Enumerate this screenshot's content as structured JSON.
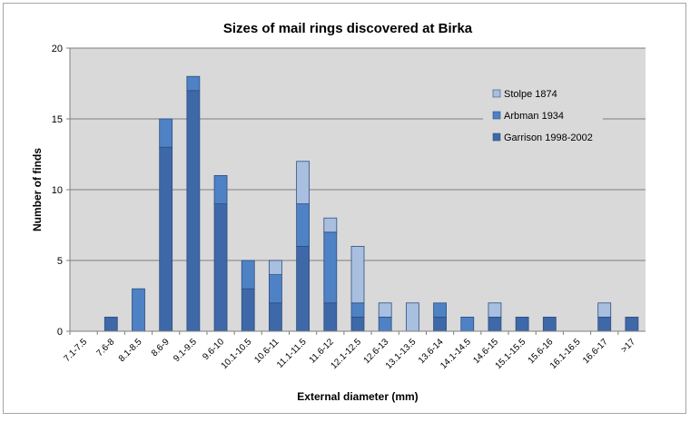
{
  "chart_data": {
    "type": "bar",
    "stacked": true,
    "title": "Sizes of mail rings discovered at Birka",
    "xlabel": "External diameter (mm)",
    "ylabel": "Number of finds",
    "ylim": [
      0,
      20
    ],
    "yticks": [
      0,
      5,
      10,
      15,
      20
    ],
    "grid": true,
    "legend_position": "top-right",
    "categories": [
      "7.1-7.5",
      "7.6-8",
      "8.1-8.5",
      "8.6-9",
      "9.1-9.5",
      "9.6-10",
      "10.1-10.5",
      "10.6-11",
      "11.1-11.5",
      "11.6-12",
      "12.1-12.5",
      "12.6-13",
      "13.1-13.5",
      "13.6-14",
      "14.1-14.5",
      "14.6-15",
      "15.1-15.5",
      "15.6-16",
      "16.1-16.5",
      "16.6-17",
      ">17"
    ],
    "series": [
      {
        "name": "Garrison 1998-2002",
        "color": "#3e68a8",
        "values": [
          0,
          1,
          0,
          13,
          17,
          9,
          3,
          2,
          6,
          2,
          1,
          0,
          0,
          1,
          0,
          1,
          1,
          1,
          0,
          1,
          1
        ]
      },
      {
        "name": "Arbman 1934",
        "color": "#4f81c5",
        "values": [
          0,
          0,
          3,
          2,
          1,
          2,
          2,
          2,
          3,
          5,
          1,
          1,
          0,
          1,
          1,
          0,
          0,
          0,
          0,
          0,
          0
        ]
      },
      {
        "name": "Stolpe 1874",
        "color": "#a9bfe0",
        "values": [
          0,
          0,
          0,
          0,
          0,
          0,
          0,
          1,
          3,
          1,
          4,
          1,
          2,
          0,
          0,
          1,
          0,
          0,
          0,
          1,
          0
        ]
      }
    ],
    "legend_order": [
      "Stolpe 1874",
      "Arbman 1934",
      "Garrison 1998-2002"
    ]
  }
}
